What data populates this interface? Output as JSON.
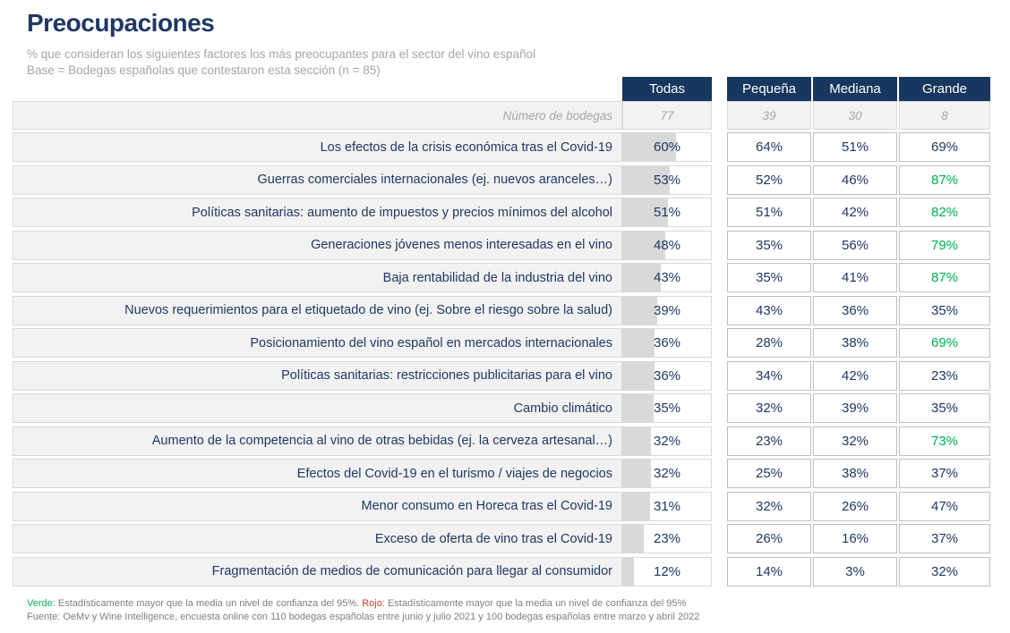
{
  "header": {
    "title": "Preocupaciones",
    "subtitle_line1": "% que consideran los siguientes factores los más preocupantes para el sector del vino español",
    "subtitle_line2": "Base = Bodegas españolas que contestaron esta sección (n = 85)"
  },
  "colors": {
    "navy_header": "#17375E",
    "value_text": "#1F3864",
    "significant_green": "#00B050",
    "significant_red": "#D03B2F",
    "bar_fill": "#D9D9D9",
    "label_row_bg": "#F2F2F2"
  },
  "table": {
    "columns": [
      "Todas",
      "Pequeña",
      "Mediana",
      "Grande"
    ],
    "base_row": {
      "label": "Número de bodegas",
      "values": [
        "77",
        "39",
        "30",
        "8"
      ]
    },
    "rows": [
      {
        "label": "Los efectos de la crisis económica tras el Covid-19",
        "todas": "60%",
        "todas_bar": 60,
        "cells": [
          {
            "text": "64%",
            "green": false
          },
          {
            "text": "51%",
            "green": false
          },
          {
            "text": "69%",
            "green": false
          }
        ]
      },
      {
        "label": "Guerras comerciales internacionales (ej. nuevos aranceles…)",
        "todas": "53%",
        "todas_bar": 53,
        "cells": [
          {
            "text": "52%",
            "green": false
          },
          {
            "text": "46%",
            "green": false
          },
          {
            "text": "87%",
            "green": true
          }
        ]
      },
      {
        "label": "Políticas sanitarias: aumento de impuestos y precios mínimos del alcohol",
        "todas": "51%",
        "todas_bar": 51,
        "cells": [
          {
            "text": "51%",
            "green": false
          },
          {
            "text": "42%",
            "green": false
          },
          {
            "text": "82%",
            "green": true
          }
        ]
      },
      {
        "label": "Generaciones jóvenes menos interesadas en el vino",
        "todas": "48%",
        "todas_bar": 48,
        "cells": [
          {
            "text": "35%",
            "green": false
          },
          {
            "text": "56%",
            "green": false
          },
          {
            "text": "79%",
            "green": true
          }
        ]
      },
      {
        "label": "Baja rentabilidad de la industria del vino",
        "todas": "43%",
        "todas_bar": 43,
        "cells": [
          {
            "text": "35%",
            "green": false
          },
          {
            "text": "41%",
            "green": false
          },
          {
            "text": "87%",
            "green": true
          }
        ]
      },
      {
        "label": "Nuevos requerimientos para el etiquetado de vino (ej. Sobre el riesgo sobre la salud)",
        "todas": "39%",
        "todas_bar": 39,
        "cells": [
          {
            "text": "43%",
            "green": false
          },
          {
            "text": "36%",
            "green": false
          },
          {
            "text": "35%",
            "green": false
          }
        ]
      },
      {
        "label": "Posicionamiento del vino español en mercados internacionales",
        "todas": "36%",
        "todas_bar": 36,
        "cells": [
          {
            "text": "28%",
            "green": false
          },
          {
            "text": "38%",
            "green": false
          },
          {
            "text": "69%",
            "green": true
          }
        ]
      },
      {
        "label": "Políticas sanitarias: restricciones publicitarias para el vino",
        "todas": "36%",
        "todas_bar": 36,
        "cells": [
          {
            "text": "34%",
            "green": false
          },
          {
            "text": "42%",
            "green": false
          },
          {
            "text": "23%",
            "green": false
          }
        ]
      },
      {
        "label": "Cambio climático",
        "todas": "35%",
        "todas_bar": 35,
        "cells": [
          {
            "text": "32%",
            "green": false
          },
          {
            "text": "39%",
            "green": false
          },
          {
            "text": "35%",
            "green": false
          }
        ]
      },
      {
        "label": "Aumento de la competencia al vino de otras bebidas (ej. la cerveza artesanal…)",
        "todas": "32%",
        "todas_bar": 32,
        "cells": [
          {
            "text": "23%",
            "green": false
          },
          {
            "text": "32%",
            "green": false
          },
          {
            "text": "73%",
            "green": true
          }
        ]
      },
      {
        "label": "Efectos del Covid-19 en el turismo / viajes de negocios",
        "todas": "32%",
        "todas_bar": 32,
        "cells": [
          {
            "text": "25%",
            "green": false
          },
          {
            "text": "38%",
            "green": false
          },
          {
            "text": "37%",
            "green": false
          }
        ]
      },
      {
        "label": "Menor consumo en Horeca tras el Covid-19",
        "todas": "31%",
        "todas_bar": 31,
        "cells": [
          {
            "text": "32%",
            "green": false
          },
          {
            "text": "26%",
            "green": false
          },
          {
            "text": "47%",
            "green": false
          }
        ]
      },
      {
        "label": "Exceso de oferta de vino tras el Covid-19",
        "todas": "23%",
        "todas_bar": 23,
        "cells": [
          {
            "text": "26%",
            "green": false
          },
          {
            "text": "16%",
            "green": false
          },
          {
            "text": "37%",
            "green": false
          }
        ]
      },
      {
        "label": "Fragmentación de medios de comunicación para llegar al consumidor",
        "todas": "12%",
        "todas_bar": 12,
        "cells": [
          {
            "text": "14%",
            "green": false
          },
          {
            "text": "3%",
            "green": false
          },
          {
            "text": "32%",
            "green": false
          }
        ]
      }
    ]
  },
  "footer": {
    "verde_label": "Verde",
    "verde_text": ": Estadísticamente mayor que la media  un nivel de confianza del 95%. ",
    "rojo_label": "Rojo",
    "rojo_text": ": Estadísticamente mayor que la media  un nivel de confianza del 95%",
    "fuente": "Fuente: OeMv y Wine Intelligence, encuesta online con 110 bodegas españolas entre junio y julio 2021 y 100 bodegas españolas entre marzo y abril 2022"
  },
  "chart_data": {
    "type": "bar",
    "title": "Preocupaciones",
    "subtitle": "% que consideran los siguientes factores los más preocupantes para el sector del vino español",
    "base": "Bodegas españolas que contestaron esta sección (n = 85)",
    "unit": "%",
    "categories": [
      "Los efectos de la crisis económica tras el Covid-19",
      "Guerras comerciales internacionales (ej. nuevos aranceles…)",
      "Políticas sanitarias: aumento de impuestos y precios mínimos del alcohol",
      "Generaciones jóvenes menos interesadas en el vino",
      "Baja rentabilidad de la industria del vino",
      "Nuevos requerimientos para el etiquetado de vino (ej. Sobre el riesgo sobre la salud)",
      "Posicionamiento del vino español en mercados internacionales",
      "Políticas sanitarias: restricciones publicitarias para el vino",
      "Cambio climático",
      "Aumento de la competencia al vino de otras bebidas (ej. la cerveza artesanal…)",
      "Efectos del Covid-19 en el turismo / viajes de negocios",
      "Menor consumo en Horeca tras el Covid-19",
      "Exceso de oferta de vino tras el Covid-19",
      "Fragmentación de medios de comunicación para llegar al consumidor"
    ],
    "series": [
      {
        "name": "Todas",
        "n_bodegas": 77,
        "values": [
          60,
          53,
          51,
          48,
          43,
          39,
          36,
          36,
          35,
          32,
          32,
          31,
          23,
          12
        ]
      },
      {
        "name": "Pequeña",
        "n_bodegas": 39,
        "values": [
          64,
          52,
          51,
          35,
          35,
          43,
          28,
          34,
          32,
          23,
          25,
          32,
          26,
          14
        ]
      },
      {
        "name": "Mediana",
        "n_bodegas": 30,
        "values": [
          51,
          46,
          42,
          56,
          41,
          36,
          38,
          42,
          39,
          32,
          38,
          26,
          16,
          3
        ]
      },
      {
        "name": "Grande",
        "n_bodegas": 8,
        "values": [
          69,
          87,
          82,
          79,
          87,
          35,
          69,
          23,
          35,
          73,
          37,
          47,
          37,
          32
        ],
        "significantly_higher_green": [
          false,
          true,
          true,
          true,
          true,
          false,
          true,
          false,
          false,
          true,
          false,
          false,
          false,
          false
        ]
      }
    ],
    "layout": {
      "bars_only_in_column": "Todas",
      "xlim": [
        0,
        100
      ],
      "grid": false,
      "legend_position": "column headers"
    }
  }
}
